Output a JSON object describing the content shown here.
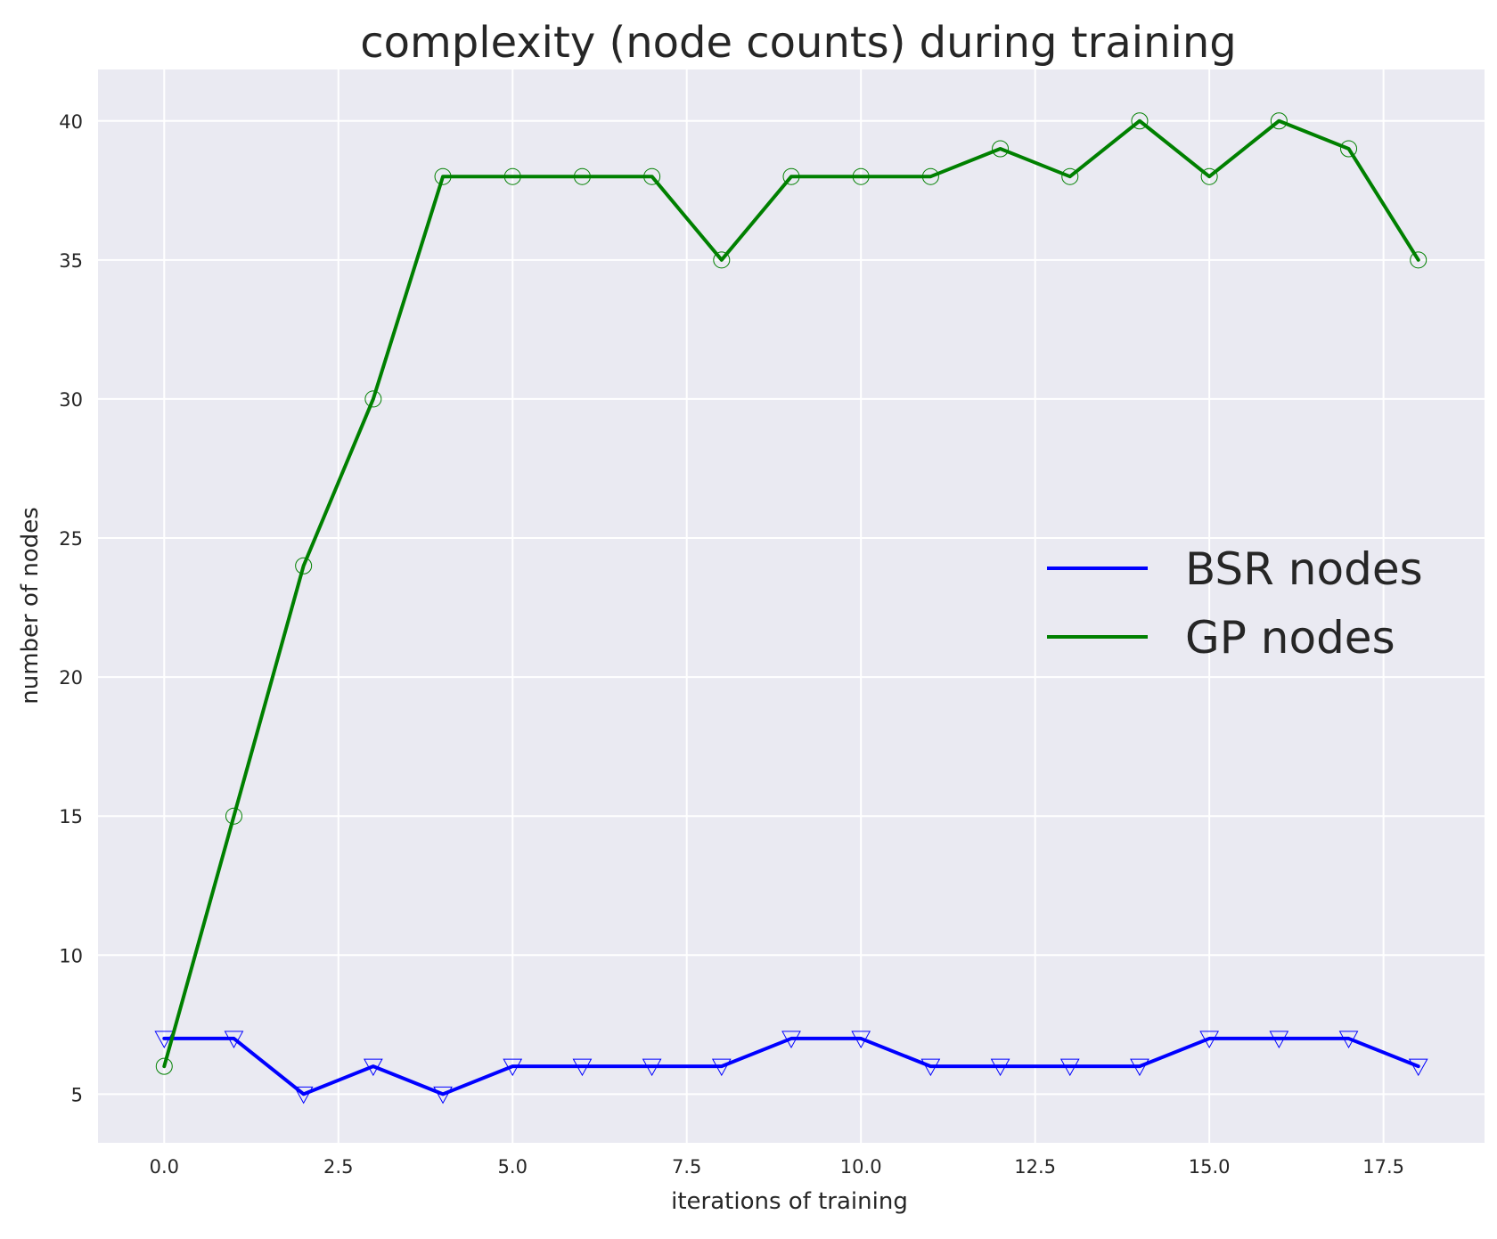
{
  "chart_data": {
    "type": "line",
    "title": "complexity (node counts) during training",
    "xlabel": "iterations of training",
    "ylabel": "number of nodes",
    "xlim": [
      -0.95,
      18.95
    ],
    "ylim": [
      3.25,
      41.85
    ],
    "xticks": [
      0.0,
      2.5,
      5.0,
      7.5,
      10.0,
      12.5,
      15.0,
      17.5
    ],
    "xtick_labels": [
      "0.0",
      "2.5",
      "5.0",
      "7.5",
      "10.0",
      "12.5",
      "15.0",
      "17.5"
    ],
    "yticks": [
      5,
      10,
      15,
      20,
      25,
      30,
      35,
      40
    ],
    "ytick_labels": [
      "5",
      "10",
      "15",
      "20",
      "25",
      "30",
      "35",
      "40"
    ],
    "grid": true,
    "background": "#eaeaf2",
    "grid_color": "#ffffff",
    "legend_position": "center-right",
    "x": [
      0,
      1,
      2,
      3,
      4,
      5,
      6,
      7,
      8,
      9,
      10,
      11,
      12,
      13,
      14,
      15,
      16,
      17,
      18
    ],
    "series": [
      {
        "name": "BSR nodes",
        "color": "#0000ff",
        "marker": "triangle-down",
        "values": [
          7,
          7,
          5,
          6,
          5,
          6,
          6,
          6,
          6,
          7,
          7,
          6,
          6,
          6,
          6,
          7,
          7,
          7,
          6
        ]
      },
      {
        "name": "GP nodes",
        "color": "#008000",
        "marker": "circle",
        "values": [
          6,
          15,
          24,
          30,
          38,
          38,
          38,
          38,
          35,
          38,
          38,
          38,
          39,
          38,
          40,
          38,
          40,
          39,
          35
        ]
      }
    ]
  }
}
